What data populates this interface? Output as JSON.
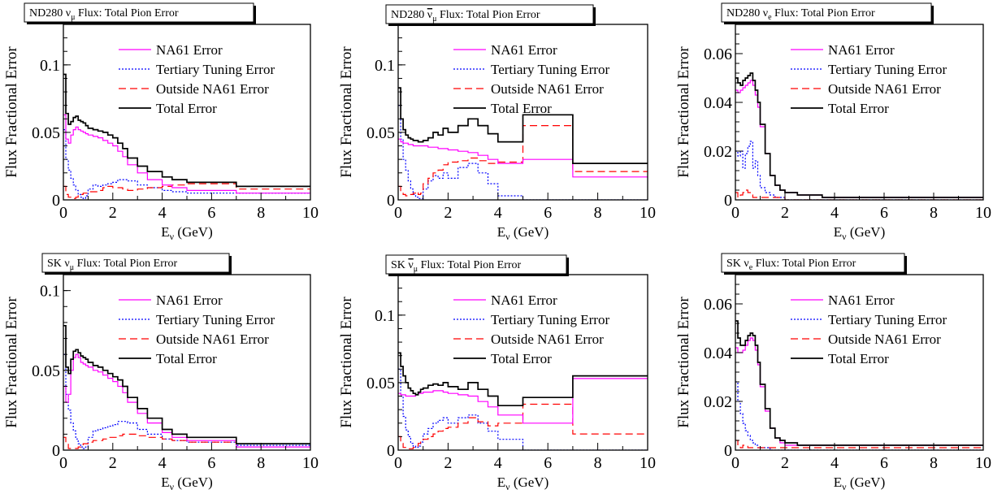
{
  "colors": {
    "na61": "#ff00ff",
    "tertiary": "#0000ff",
    "outside": "#ff0000",
    "total": "#000000"
  },
  "legend": [
    "NA61 Error",
    "Tertiary Tuning Error",
    "Outside NA61 Error",
    "Total Error"
  ],
  "ylabel": "Flux Fractional Error",
  "xlabel": "E",
  "xlabel_sub": "ν",
  "xlabel_unit": " (GeV)",
  "chart_data": [
    {
      "type": "line",
      "title_prefix": "ND280 ",
      "title_nu": "ν",
      "title_sub": "μ",
      "title_suffix": " Flux: Total Pion Error",
      "bar": false,
      "xlim": [
        0,
        10
      ],
      "ylim": [
        0,
        0.13
      ],
      "xticks": [
        0,
        2,
        4,
        6,
        8,
        10
      ],
      "yticks": [
        0,
        0.05,
        0.1
      ],
      "ytick_labels": [
        "0",
        "0.05",
        "0.1"
      ],
      "x_edges": [
        0,
        0.1,
        0.2,
        0.3,
        0.4,
        0.5,
        0.6,
        0.7,
        0.8,
        0.9,
        1.0,
        1.2,
        1.4,
        1.6,
        1.8,
        2.0,
        2.2,
        2.4,
        2.6,
        3.0,
        3.4,
        4.0,
        4.4,
        5.0,
        7.0,
        10.0
      ],
      "series": [
        {
          "name": "NA61 Error",
          "key": "na61",
          "values": [
            0.063,
            0.045,
            0.042,
            0.048,
            0.052,
            0.054,
            0.052,
            0.051,
            0.05,
            0.049,
            0.048,
            0.047,
            0.046,
            0.044,
            0.042,
            0.04,
            0.036,
            0.032,
            0.026,
            0.02,
            0.015,
            0.011,
            0.009,
            0.007,
            0.005
          ]
        },
        {
          "name": "Tertiary Tuning Error",
          "key": "tertiary",
          "values": [
            0.052,
            0.03,
            0.022,
            0.016,
            0.011,
            0.007,
            0.004,
            0.002,
            0.001,
            0.003,
            0.008,
            0.011,
            0.01,
            0.011,
            0.012,
            0.013,
            0.015,
            0.015,
            0.014,
            0.011,
            0.009,
            0.007,
            0.006,
            0.005,
            0.005
          ]
        },
        {
          "name": "Outside NA61 Error",
          "key": "outside",
          "values": [
            0.01,
            0.004,
            0.002,
            0.001,
            0.001,
            0.002,
            0.003,
            0.004,
            0.005,
            0.005,
            0.006,
            0.006,
            0.007,
            0.009,
            0.01,
            0.009,
            0.009,
            0.008,
            0.007,
            0.008,
            0.009,
            0.01,
            0.011,
            0.012,
            0.008
          ]
        },
        {
          "name": "Total Error",
          "key": "total",
          "values": [
            0.093,
            0.064,
            0.056,
            0.058,
            0.061,
            0.062,
            0.059,
            0.058,
            0.057,
            0.055,
            0.053,
            0.052,
            0.051,
            0.05,
            0.048,
            0.046,
            0.042,
            0.038,
            0.031,
            0.025,
            0.021,
            0.017,
            0.015,
            0.013,
            0.01
          ]
        }
      ]
    },
    {
      "type": "line",
      "title_prefix": "ND280 ",
      "title_nu": "ν",
      "title_sub": "μ",
      "title_suffix": " Flux: Total Pion Error",
      "bar": true,
      "xlim": [
        0,
        10
      ],
      "ylim": [
        0,
        0.13
      ],
      "xticks": [
        0,
        2,
        4,
        6,
        8,
        10
      ],
      "yticks": [
        0,
        0.05,
        0.1
      ],
      "ytick_labels": [
        "0",
        "0.05",
        "0.1"
      ],
      "x_edges": [
        0,
        0.1,
        0.2,
        0.3,
        0.4,
        0.5,
        0.6,
        0.7,
        0.8,
        0.9,
        1.0,
        1.2,
        1.4,
        1.6,
        1.8,
        2.0,
        2.4,
        2.8,
        3.2,
        3.6,
        4.0,
        5.0,
        7.0,
        10.0
      ],
      "series": [
        {
          "name": "NA61 Error",
          "key": "na61",
          "values": [
            0.045,
            0.043,
            0.042,
            0.042,
            0.041,
            0.041,
            0.04,
            0.04,
            0.04,
            0.04,
            0.04,
            0.039,
            0.039,
            0.038,
            0.038,
            0.037,
            0.036,
            0.035,
            0.033,
            0.03,
            0.027,
            0.03,
            0.017
          ]
        },
        {
          "name": "Tertiary Tuning Error",
          "key": "tertiary",
          "values": [
            0.07,
            0.045,
            0.03,
            0.022,
            0.014,
            0.008,
            0.004,
            0.002,
            0.001,
            0.001,
            0.008,
            0.014,
            0.018,
            0.016,
            0.02,
            0.016,
            0.024,
            0.027,
            0.02,
            0.012,
            0.003,
            0.0,
            0.0
          ]
        },
        {
          "name": "Outside NA61 Error",
          "key": "outside",
          "values": [
            0.01,
            0.006,
            0.004,
            0.003,
            0.003,
            0.004,
            0.005,
            0.006,
            0.004,
            0.005,
            0.012,
            0.016,
            0.02,
            0.022,
            0.026,
            0.028,
            0.029,
            0.031,
            0.029,
            0.027,
            0.028,
            0.055,
            0.021
          ]
        },
        {
          "name": "Total Error",
          "key": "total",
          "values": [
            0.083,
            0.06,
            0.052,
            0.048,
            0.046,
            0.045,
            0.044,
            0.044,
            0.043,
            0.043,
            0.044,
            0.046,
            0.05,
            0.048,
            0.053,
            0.05,
            0.055,
            0.06,
            0.055,
            0.049,
            0.043,
            0.063,
            0.027
          ]
        }
      ]
    },
    {
      "type": "line",
      "title_prefix": "ND280 ",
      "title_nu": "ν",
      "title_sub": "e",
      "title_suffix": " Flux: Total Pion Error",
      "bar": false,
      "xlim": [
        0,
        10
      ],
      "ylim": [
        0,
        0.072
      ],
      "xticks": [
        0,
        2,
        4,
        6,
        8,
        10
      ],
      "yticks": [
        0,
        0.02,
        0.04,
        0.06
      ],
      "ytick_labels": [
        "0",
        "0.02",
        "0.04",
        "0.06"
      ],
      "x_edges": [
        0,
        0.1,
        0.2,
        0.3,
        0.4,
        0.5,
        0.6,
        0.7,
        0.8,
        0.9,
        1.0,
        1.2,
        1.4,
        1.6,
        1.8,
        2.0,
        2.5,
        3.0,
        3.5,
        4.0,
        5.0,
        7.0,
        10.0
      ],
      "series": [
        {
          "name": "NA61 Error",
          "key": "na61",
          "values": [
            0.045,
            0.044,
            0.045,
            0.046,
            0.047,
            0.048,
            0.049,
            0.047,
            0.043,
            0.038,
            0.03,
            0.019,
            0.01,
            0.006,
            0.004,
            0.003,
            0.002,
            0.002,
            0.001,
            0.001,
            0.001,
            0.001
          ]
        },
        {
          "name": "Tertiary Tuning Error",
          "key": "tertiary",
          "values": [
            0.02,
            0.018,
            0.02,
            0.013,
            0.019,
            0.022,
            0.024,
            0.013,
            0.016,
            0.01,
            0.005,
            0.003,
            0.002,
            0.001,
            0.001,
            0.0,
            0.0,
            0.0,
            0.0,
            0.0,
            0.0,
            0.0
          ]
        },
        {
          "name": "Outside NA61 Error",
          "key": "outside",
          "values": [
            0.003,
            0.001,
            0.002,
            0.003,
            0.004,
            0.003,
            0.002,
            0.001,
            0.001,
            0.001,
            0.001,
            0.001,
            0.001,
            0.001,
            0.001,
            0.0,
            0.0,
            0.0,
            0.0,
            0.0,
            0.0,
            0.0
          ]
        },
        {
          "name": "Total Error",
          "key": "total",
          "values": [
            0.05,
            0.048,
            0.047,
            0.049,
            0.05,
            0.051,
            0.052,
            0.049,
            0.045,
            0.04,
            0.031,
            0.019,
            0.01,
            0.006,
            0.004,
            0.003,
            0.002,
            0.002,
            0.001,
            0.001,
            0.001,
            0.001
          ]
        }
      ]
    },
    {
      "type": "line",
      "title_prefix": "SK ",
      "title_nu": "ν",
      "title_sub": "μ",
      "title_suffix": " Flux: Total Pion Error",
      "bar": false,
      "xlim": [
        0,
        10
      ],
      "ylim": [
        0,
        0.11
      ],
      "xticks": [
        0,
        2,
        4,
        6,
        8,
        10
      ],
      "yticks": [
        0,
        0.05,
        0.1
      ],
      "ytick_labels": [
        "0",
        "0.05",
        "0.1"
      ],
      "x_edges": [
        0,
        0.1,
        0.2,
        0.3,
        0.4,
        0.5,
        0.6,
        0.7,
        0.8,
        0.9,
        1.0,
        1.2,
        1.4,
        1.6,
        1.8,
        2.0,
        2.2,
        2.4,
        2.6,
        3.0,
        3.4,
        4.0,
        4.4,
        5.0,
        7.0,
        10.0
      ],
      "series": [
        {
          "name": "NA61 Error",
          "key": "na61",
          "values": [
            0.04,
            0.03,
            0.035,
            0.05,
            0.058,
            0.06,
            0.058,
            0.055,
            0.054,
            0.053,
            0.052,
            0.05,
            0.049,
            0.047,
            0.045,
            0.043,
            0.04,
            0.036,
            0.03,
            0.023,
            0.017,
            0.011,
            0.008,
            0.006,
            0.002
          ]
        },
        {
          "name": "Tertiary Tuning Error",
          "key": "tertiary",
          "values": [
            0.06,
            0.035,
            0.025,
            0.017,
            0.012,
            0.007,
            0.004,
            0.002,
            0.001,
            0.002,
            0.008,
            0.012,
            0.013,
            0.014,
            0.015,
            0.016,
            0.018,
            0.018,
            0.017,
            0.013,
            0.01,
            0.007,
            0.006,
            0.005,
            0.003
          ]
        },
        {
          "name": "Outside NA61 Error",
          "key": "outside",
          "values": [
            0.008,
            0.004,
            0.001,
            0.001,
            0.001,
            0.001,
            0.002,
            0.003,
            0.004,
            0.004,
            0.005,
            0.006,
            0.006,
            0.007,
            0.008,
            0.008,
            0.009,
            0.01,
            0.01,
            0.009,
            0.008,
            0.007,
            0.006,
            0.005,
            0.004
          ]
        },
        {
          "name": "Total Error",
          "key": "total",
          "values": [
            0.078,
            0.052,
            0.048,
            0.057,
            0.062,
            0.063,
            0.061,
            0.059,
            0.058,
            0.057,
            0.055,
            0.053,
            0.052,
            0.05,
            0.048,
            0.046,
            0.044,
            0.04,
            0.033,
            0.026,
            0.02,
            0.013,
            0.01,
            0.008,
            0.004
          ]
        }
      ]
    },
    {
      "type": "line",
      "title_prefix": "SK ",
      "title_nu": "ν",
      "title_sub": "μ",
      "title_suffix": " Flux: Total Pion Error",
      "bar": true,
      "xlim": [
        0,
        10
      ],
      "ylim": [
        0,
        0.13
      ],
      "xticks": [
        0,
        2,
        4,
        6,
        8,
        10
      ],
      "yticks": [
        0,
        0.05,
        0.1
      ],
      "ytick_labels": [
        "0",
        "0.05",
        "0.1"
      ],
      "x_edges": [
        0,
        0.1,
        0.2,
        0.3,
        0.4,
        0.5,
        0.6,
        0.7,
        0.8,
        0.9,
        1.0,
        1.2,
        1.4,
        1.6,
        1.8,
        2.0,
        2.4,
        2.8,
        3.2,
        3.6,
        4.0,
        5.0,
        7.0,
        10.0
      ],
      "series": [
        {
          "name": "NA61 Error",
          "key": "na61",
          "values": [
            0.042,
            0.041,
            0.041,
            0.04,
            0.04,
            0.04,
            0.04,
            0.041,
            0.042,
            0.042,
            0.043,
            0.043,
            0.044,
            0.044,
            0.043,
            0.042,
            0.041,
            0.04,
            0.036,
            0.032,
            0.026,
            0.02,
            0.053
          ]
        },
        {
          "name": "Tertiary Tuning Error",
          "key": "tertiary",
          "values": [
            0.06,
            0.04,
            0.025,
            0.015,
            0.01,
            0.005,
            0.003,
            0.002,
            0.003,
            0.006,
            0.012,
            0.016,
            0.02,
            0.022,
            0.024,
            0.02,
            0.024,
            0.026,
            0.02,
            0.014,
            0.008,
            0.0,
            0.0
          ]
        },
        {
          "name": "Outside NA61 Error",
          "key": "outside",
          "values": [
            0.01,
            0.005,
            0.002,
            0.001,
            0.001,
            0.001,
            0.002,
            0.003,
            0.005,
            0.006,
            0.008,
            0.01,
            0.012,
            0.014,
            0.016,
            0.017,
            0.02,
            0.024,
            0.021,
            0.018,
            0.02,
            0.034,
            0.012
          ]
        },
        {
          "name": "Total Error",
          "key": "total",
          "values": [
            0.072,
            0.062,
            0.055,
            0.05,
            0.046,
            0.044,
            0.042,
            0.041,
            0.043,
            0.045,
            0.046,
            0.048,
            0.049,
            0.048,
            0.05,
            0.047,
            0.045,
            0.05,
            0.045,
            0.04,
            0.033,
            0.039,
            0.055
          ]
        }
      ]
    },
    {
      "type": "line",
      "title_prefix": "SK ",
      "title_nu": "ν",
      "title_sub": "e",
      "title_suffix": " Flux: Total Pion Error",
      "bar": false,
      "xlim": [
        0,
        10
      ],
      "ylim": [
        0,
        0.072
      ],
      "xticks": [
        0,
        2,
        4,
        6,
        8,
        10
      ],
      "yticks": [
        0,
        0.02,
        0.04,
        0.06
      ],
      "ytick_labels": [
        "0",
        "0.02",
        "0.04",
        "0.06"
      ],
      "x_edges": [
        0,
        0.1,
        0.2,
        0.3,
        0.4,
        0.5,
        0.6,
        0.7,
        0.8,
        0.9,
        1.0,
        1.2,
        1.4,
        1.6,
        1.8,
        2.0,
        2.5,
        3.0,
        3.5,
        4.0,
        5.0,
        7.0,
        10.0
      ],
      "series": [
        {
          "name": "NA61 Error",
          "key": "na61",
          "values": [
            0.042,
            0.04,
            0.04,
            0.041,
            0.043,
            0.045,
            0.046,
            0.045,
            0.041,
            0.035,
            0.026,
            0.016,
            0.009,
            0.005,
            0.003,
            0.002,
            0.002,
            0.002,
            0.002,
            0.002,
            0.002,
            0.002
          ]
        },
        {
          "name": "Tertiary Tuning Error",
          "key": "tertiary",
          "values": [
            0.028,
            0.02,
            0.015,
            0.011,
            0.008,
            0.006,
            0.004,
            0.003,
            0.002,
            0.001,
            0.001,
            0.001,
            0.0,
            0.0,
            0.0,
            0.0,
            0.0,
            0.0,
            0.0,
            0.0,
            0.0,
            0.0
          ]
        },
        {
          "name": "Outside NA61 Error",
          "key": "outside",
          "values": [
            0.004,
            0.002,
            0.001,
            0.002,
            0.002,
            0.001,
            0.001,
            0.001,
            0.001,
            0.001,
            0.001,
            0.001,
            0.001,
            0.001,
            0.001,
            0.001,
            0.001,
            0.001,
            0.001,
            0.001,
            0.001,
            0.001
          ]
        },
        {
          "name": "Total Error",
          "key": "total",
          "values": [
            0.053,
            0.046,
            0.043,
            0.043,
            0.045,
            0.047,
            0.048,
            0.047,
            0.043,
            0.036,
            0.027,
            0.017,
            0.009,
            0.005,
            0.004,
            0.003,
            0.002,
            0.002,
            0.002,
            0.002,
            0.002,
            0.002
          ]
        }
      ]
    }
  ]
}
